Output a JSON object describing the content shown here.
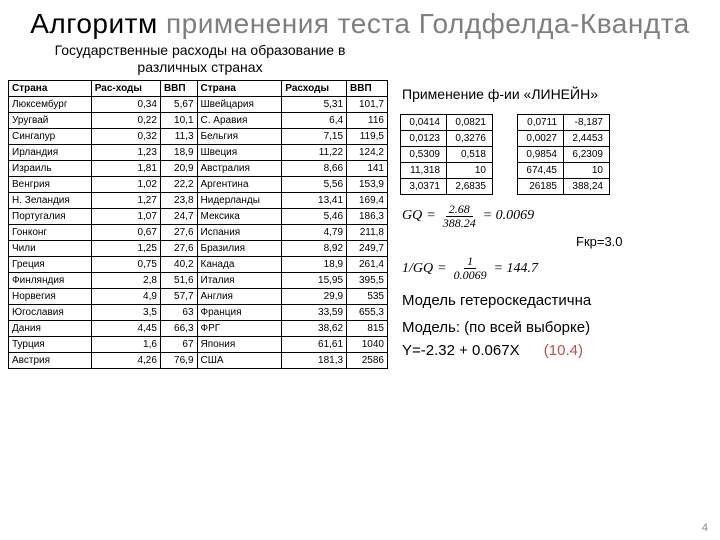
{
  "title_dark": "Алгоритм",
  "title_light": " применения теста Голдфелда-Квандта",
  "subtitle": "Государственные расходы на образование в различных странах",
  "right_title": "Применение ф-ии «ЛИНЕЙН»",
  "headers": [
    "Страна",
    "Рас-ходы",
    "ВВП",
    "Страна",
    "Расходы",
    "ВВП"
  ],
  "rows": [
    [
      "Люксембург",
      "0,34",
      "5,67",
      "Швейцария",
      "5,31",
      "101,7"
    ],
    [
      "Уругвай",
      "0,22",
      "10,1",
      "С. Аравия",
      "6,4",
      "116"
    ],
    [
      "Сингапур",
      "0,32",
      "11,3",
      "Бельгия",
      "7,15",
      "119,5"
    ],
    [
      "Ирландия",
      "1,23",
      "18,9",
      "Швеция",
      "11,22",
      "124,2"
    ],
    [
      "Израиль",
      "1,81",
      "20,9",
      "Австралия",
      "8,66",
      "141"
    ],
    [
      "Венгрия",
      "1,02",
      "22,2",
      "Аргентина",
      "5,56",
      "153,9"
    ],
    [
      "Н. Зеландия",
      "1,27",
      "23,8",
      "Нидерланды",
      "13,41",
      "169,4"
    ],
    [
      "Португалия",
      "1,07",
      "24,7",
      "Мексика",
      "5,46",
      "186,3"
    ],
    [
      "Гонконг",
      "0,67",
      "27,6",
      "Испания",
      "4,79",
      "211,8"
    ],
    [
      "Чили",
      "1,25",
      "27,6",
      "Бразилия",
      "8,92",
      "249,7"
    ],
    [
      "Греция",
      "0,75",
      "40,2",
      "Канада",
      "18,9",
      "261,4"
    ],
    [
      "Финляндия",
      "2,8",
      "51,6",
      "Италия",
      "15,95",
      "395,5"
    ],
    [
      "Норвегия",
      "4,9",
      "57,7",
      "Англия",
      "29,9",
      "535"
    ],
    [
      "Югославия",
      "3,5",
      "63",
      "Франция",
      "33,59",
      "655,3"
    ],
    [
      "Дания",
      "4,45",
      "66,3",
      "ФРГ",
      "38,62",
      "815"
    ],
    [
      "Турция",
      "1,6",
      "67",
      "Япония",
      "61,61",
      "1040"
    ],
    [
      "Австрия",
      "4,26",
      "76,9",
      "США",
      "181,3",
      "2586"
    ]
  ],
  "tbl1": [
    [
      "0,0414",
      "0,0821"
    ],
    [
      "0,0123",
      "0,3276"
    ],
    [
      "0,5309",
      "0,518"
    ],
    [
      "11,318",
      "10"
    ],
    [
      "3,0371",
      "2,6835"
    ]
  ],
  "tbl2": [
    [
      "0,0711",
      "-8,187"
    ],
    [
      "0,0027",
      "2,4453"
    ],
    [
      "0,9854",
      "6,2309"
    ],
    [
      "674,45",
      "10"
    ],
    [
      "26185",
      "388,24"
    ]
  ],
  "gq_lhs": "GQ",
  "gq_num": "2.68",
  "gq_den": "388.24",
  "gq_res": "= 0.0069",
  "inv_lhs": "1/GQ",
  "inv_num": "1",
  "inv_den": "0.0069",
  "inv_res": "= 144.7",
  "fkr": "Fкр=3.0",
  "stmt1": "Модель гетероскедастична",
  "stmt2": "Модель: (по всей выборке)",
  "eq": "Y=-2.32 + 0.067X",
  "eq_t": "(10.4)",
  "pagenum": "4"
}
